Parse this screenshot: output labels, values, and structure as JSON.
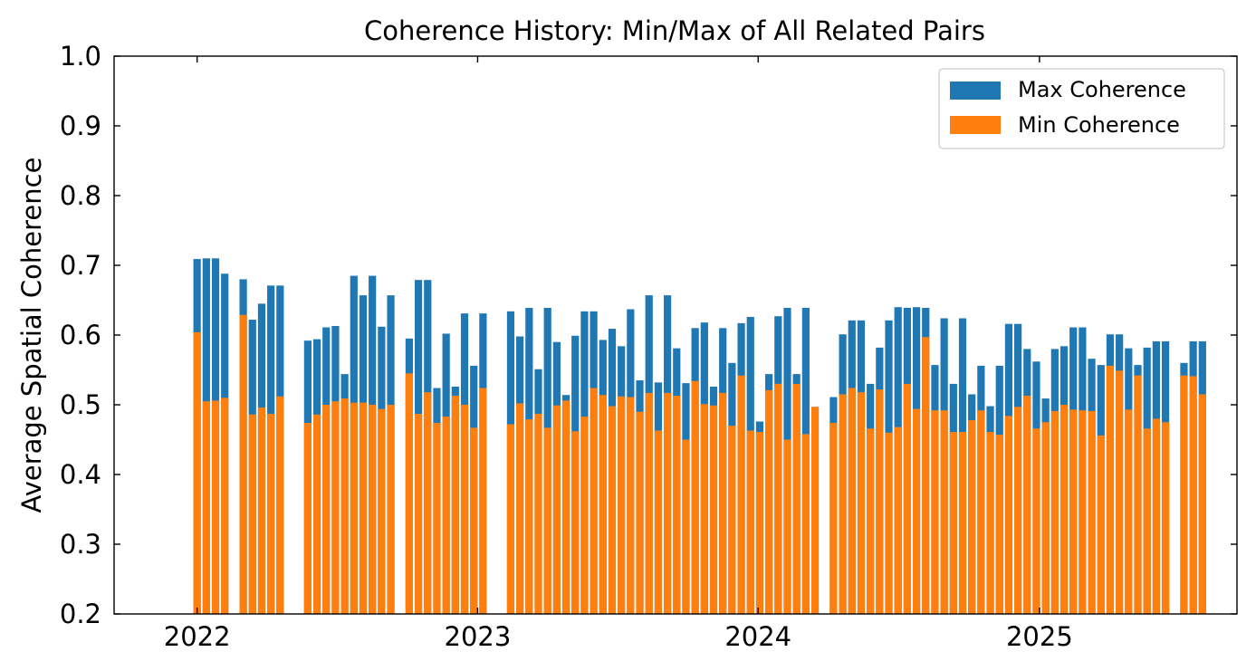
{
  "chart_data": {
    "type": "bar",
    "title": "Coherence History: Min/Max of All Related Pairs",
    "xlabel": "",
    "ylabel": "Average Spatial Coherence",
    "ylim": [
      0.2,
      1.0
    ],
    "yticks": [
      "0.2",
      "0.3",
      "0.4",
      "0.5",
      "0.6",
      "0.7",
      "0.8",
      "0.9",
      "1.0"
    ],
    "xticks": [
      "2022",
      "2023",
      "2024",
      "2025"
    ],
    "xlim": [
      "2021-09-15",
      "2025-09-15"
    ],
    "legend_position": "top-right",
    "grid": false,
    "series": [
      {
        "name": "Max Coherence",
        "color": "#1f77b4",
        "points": [
          [
            "2022-01-01",
            0.709
          ],
          [
            "2022-01-13",
            0.71
          ],
          [
            "2022-01-25",
            0.71
          ],
          [
            "2022-02-06",
            0.688
          ],
          [
            "2022-03-02",
            0.68
          ],
          [
            "2022-03-14",
            0.622
          ],
          [
            "2022-03-26",
            0.645
          ],
          [
            "2022-04-07",
            0.671
          ],
          [
            "2022-04-19",
            0.671
          ],
          [
            "2022-05-25",
            0.592
          ],
          [
            "2022-06-06",
            0.594
          ],
          [
            "2022-06-18",
            0.611
          ],
          [
            "2022-06-30",
            0.613
          ],
          [
            "2022-07-12",
            0.544
          ],
          [
            "2022-07-24",
            0.685
          ],
          [
            "2022-08-05",
            0.657
          ],
          [
            "2022-08-17",
            0.685
          ],
          [
            "2022-08-29",
            0.612
          ],
          [
            "2022-09-10",
            0.657
          ],
          [
            "2022-10-04",
            0.595
          ],
          [
            "2022-10-16",
            0.679
          ],
          [
            "2022-10-28",
            0.679
          ],
          [
            "2022-11-09",
            0.524
          ],
          [
            "2022-11-21",
            0.602
          ],
          [
            "2022-12-03",
            0.526
          ],
          [
            "2022-12-15",
            0.631
          ],
          [
            "2022-12-27",
            0.556
          ],
          [
            "2023-01-08",
            0.631
          ],
          [
            "2023-02-13",
            0.634
          ],
          [
            "2023-02-25",
            0.598
          ],
          [
            "2023-03-09",
            0.639
          ],
          [
            "2023-03-21",
            0.551
          ],
          [
            "2023-04-02",
            0.639
          ],
          [
            "2023-04-14",
            0.59
          ],
          [
            "2023-04-26",
            0.514
          ],
          [
            "2023-05-08",
            0.599
          ],
          [
            "2023-05-20",
            0.634
          ],
          [
            "2023-06-01",
            0.634
          ],
          [
            "2023-06-13",
            0.593
          ],
          [
            "2023-06-25",
            0.609
          ],
          [
            "2023-07-07",
            0.584
          ],
          [
            "2023-07-19",
            0.637
          ],
          [
            "2023-07-31",
            0.535
          ],
          [
            "2023-08-12",
            0.657
          ],
          [
            "2023-08-24",
            0.532
          ],
          [
            "2023-09-05",
            0.657
          ],
          [
            "2023-09-17",
            0.581
          ],
          [
            "2023-09-29",
            0.531
          ],
          [
            "2023-10-11",
            0.61
          ],
          [
            "2023-10-23",
            0.618
          ],
          [
            "2023-11-04",
            0.526
          ],
          [
            "2023-11-16",
            0.61
          ],
          [
            "2023-11-28",
            0.56
          ],
          [
            "2023-12-10",
            0.617
          ],
          [
            "2023-12-22",
            0.626
          ],
          [
            "2024-01-03",
            0.476
          ],
          [
            "2024-01-15",
            0.544
          ],
          [
            "2024-01-27",
            0.627
          ],
          [
            "2024-02-08",
            0.639
          ],
          [
            "2024-02-20",
            0.544
          ],
          [
            "2024-03-03",
            0.639
          ],
          [
            "2024-03-15",
            0.497
          ],
          [
            "2024-04-08",
            0.511
          ],
          [
            "2024-04-20",
            0.601
          ],
          [
            "2024-05-02",
            0.621
          ],
          [
            "2024-05-14",
            0.621
          ],
          [
            "2024-05-26",
            0.53
          ],
          [
            "2024-06-07",
            0.582
          ],
          [
            "2024-06-19",
            0.621
          ],
          [
            "2024-07-01",
            0.64
          ],
          [
            "2024-07-13",
            0.639
          ],
          [
            "2024-07-25",
            0.64
          ],
          [
            "2024-08-06",
            0.639
          ],
          [
            "2024-08-18",
            0.557
          ],
          [
            "2024-08-30",
            0.624
          ],
          [
            "2024-09-11",
            0.53
          ],
          [
            "2024-09-23",
            0.624
          ],
          [
            "2024-10-05",
            0.515
          ],
          [
            "2024-10-17",
            0.556
          ],
          [
            "2024-10-29",
            0.498
          ],
          [
            "2024-11-10",
            0.556
          ],
          [
            "2024-11-22",
            0.616
          ],
          [
            "2024-12-04",
            0.616
          ],
          [
            "2024-12-16",
            0.58
          ],
          [
            "2024-12-28",
            0.562
          ],
          [
            "2025-01-09",
            0.509
          ],
          [
            "2025-01-21",
            0.58
          ],
          [
            "2025-02-02",
            0.584
          ],
          [
            "2025-02-14",
            0.611
          ],
          [
            "2025-02-26",
            0.611
          ],
          [
            "2025-03-10",
            0.566
          ],
          [
            "2025-03-22",
            0.557
          ],
          [
            "2025-04-03",
            0.601
          ],
          [
            "2025-04-15",
            0.601
          ],
          [
            "2025-04-27",
            0.581
          ],
          [
            "2025-05-09",
            0.557
          ],
          [
            "2025-05-21",
            0.582
          ],
          [
            "2025-06-02",
            0.591
          ],
          [
            "2025-06-14",
            0.591
          ],
          [
            "2025-07-08",
            0.56
          ],
          [
            "2025-07-20",
            0.591
          ],
          [
            "2025-08-01",
            0.591
          ]
        ]
      },
      {
        "name": "Min Coherence",
        "color": "#ff7f0e",
        "points": [
          [
            "2022-01-01",
            0.604
          ],
          [
            "2022-01-13",
            0.505
          ],
          [
            "2022-01-25",
            0.506
          ],
          [
            "2022-02-06",
            0.51
          ],
          [
            "2022-03-02",
            0.629
          ],
          [
            "2022-03-14",
            0.486
          ],
          [
            "2022-03-26",
            0.496
          ],
          [
            "2022-04-07",
            0.487
          ],
          [
            "2022-04-19",
            0.512
          ],
          [
            "2022-05-25",
            0.474
          ],
          [
            "2022-06-06",
            0.486
          ],
          [
            "2022-06-18",
            0.5
          ],
          [
            "2022-06-30",
            0.505
          ],
          [
            "2022-07-12",
            0.509
          ],
          [
            "2022-07-24",
            0.503
          ],
          [
            "2022-08-05",
            0.503
          ],
          [
            "2022-08-17",
            0.5
          ],
          [
            "2022-08-29",
            0.494
          ],
          [
            "2022-09-10",
            0.5
          ],
          [
            "2022-10-04",
            0.545
          ],
          [
            "2022-10-16",
            0.487
          ],
          [
            "2022-10-28",
            0.518
          ],
          [
            "2022-11-09",
            0.474
          ],
          [
            "2022-11-21",
            0.483
          ],
          [
            "2022-12-03",
            0.513
          ],
          [
            "2022-12-15",
            0.5
          ],
          [
            "2022-12-27",
            0.467
          ],
          [
            "2023-01-08",
            0.524
          ],
          [
            "2023-02-13",
            0.472
          ],
          [
            "2023-02-25",
            0.502
          ],
          [
            "2023-03-09",
            0.479
          ],
          [
            "2023-03-21",
            0.487
          ],
          [
            "2023-04-02",
            0.467
          ],
          [
            "2023-04-14",
            0.499
          ],
          [
            "2023-04-26",
            0.506
          ],
          [
            "2023-05-08",
            0.462
          ],
          [
            "2023-05-20",
            0.483
          ],
          [
            "2023-06-01",
            0.524
          ],
          [
            "2023-06-13",
            0.514
          ],
          [
            "2023-06-25",
            0.498
          ],
          [
            "2023-07-07",
            0.512
          ],
          [
            "2023-07-19",
            0.511
          ],
          [
            "2023-07-31",
            0.49
          ],
          [
            "2023-08-12",
            0.517
          ],
          [
            "2023-08-24",
            0.463
          ],
          [
            "2023-09-05",
            0.517
          ],
          [
            "2023-09-17",
            0.513
          ],
          [
            "2023-09-29",
            0.45
          ],
          [
            "2023-10-11",
            0.534
          ],
          [
            "2023-10-23",
            0.501
          ],
          [
            "2023-11-04",
            0.499
          ],
          [
            "2023-11-16",
            0.517
          ],
          [
            "2023-11-28",
            0.47
          ],
          [
            "2023-12-10",
            0.542
          ],
          [
            "2023-12-22",
            0.463
          ],
          [
            "2024-01-03",
            0.461
          ],
          [
            "2024-01-15",
            0.521
          ],
          [
            "2024-01-27",
            0.53
          ],
          [
            "2024-02-08",
            0.45
          ],
          [
            "2024-02-20",
            0.53
          ],
          [
            "2024-03-03",
            0.458
          ],
          [
            "2024-03-15",
            0.497
          ],
          [
            "2024-04-08",
            0.474
          ],
          [
            "2024-04-20",
            0.515
          ],
          [
            "2024-05-02",
            0.524
          ],
          [
            "2024-05-14",
            0.518
          ],
          [
            "2024-05-26",
            0.466
          ],
          [
            "2024-06-07",
            0.522
          ],
          [
            "2024-06-19",
            0.46
          ],
          [
            "2024-07-01",
            0.468
          ],
          [
            "2024-07-13",
            0.53
          ],
          [
            "2024-07-25",
            0.494
          ],
          [
            "2024-08-06",
            0.597
          ],
          [
            "2024-08-18",
            0.492
          ],
          [
            "2024-08-30",
            0.492
          ],
          [
            "2024-09-11",
            0.461
          ],
          [
            "2024-09-23",
            0.461
          ],
          [
            "2024-10-05",
            0.478
          ],
          [
            "2024-10-17",
            0.492
          ],
          [
            "2024-10-29",
            0.461
          ],
          [
            "2024-11-10",
            0.457
          ],
          [
            "2024-11-22",
            0.484
          ],
          [
            "2024-12-04",
            0.497
          ],
          [
            "2024-12-16",
            0.513
          ],
          [
            "2024-12-28",
            0.466
          ],
          [
            "2025-01-09",
            0.475
          ],
          [
            "2025-01-21",
            0.491
          ],
          [
            "2025-02-02",
            0.5
          ],
          [
            "2025-02-14",
            0.493
          ],
          [
            "2025-02-26",
            0.492
          ],
          [
            "2025-03-10",
            0.491
          ],
          [
            "2025-03-22",
            0.456
          ],
          [
            "2025-04-03",
            0.556
          ],
          [
            "2025-04-15",
            0.549
          ],
          [
            "2025-04-27",
            0.493
          ],
          [
            "2025-05-09",
            0.542
          ],
          [
            "2025-05-21",
            0.466
          ],
          [
            "2025-06-02",
            0.48
          ],
          [
            "2025-06-14",
            0.475
          ],
          [
            "2025-07-08",
            0.542
          ],
          [
            "2025-07-20",
            0.541
          ],
          [
            "2025-08-01",
            0.515
          ]
        ]
      }
    ]
  }
}
